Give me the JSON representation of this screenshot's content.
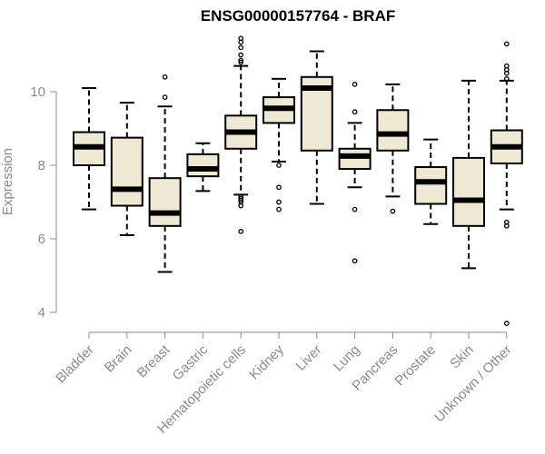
{
  "chart_data": {
    "type": "box",
    "title": "ENSG00000157764 - BRAF",
    "xlabel": "",
    "ylabel": "Expression",
    "ylim": [
      3.6,
      11.5
    ],
    "yticks": [
      4,
      6,
      8,
      10
    ],
    "grid": false,
    "legend": "none",
    "colors": {
      "box_fill": "#efe8d2",
      "box_stroke": "#000000",
      "axis": "#8a8a8a"
    },
    "categories": [
      "Bladder",
      "Brain",
      "Breast",
      "Gastric",
      "Hematopoietic cells",
      "Kidney",
      "Liver",
      "Lung",
      "Pancreas",
      "Prostate",
      "Skin",
      "Unknown / Other"
    ],
    "boxes": [
      {
        "category": "Bladder",
        "whisker_low": 6.8,
        "q1": 8.0,
        "median": 8.5,
        "q3": 8.9,
        "whisker_high": 10.1,
        "outliers": []
      },
      {
        "category": "Brain",
        "whisker_low": 6.1,
        "q1": 6.9,
        "median": 7.35,
        "q3": 8.75,
        "whisker_high": 9.7,
        "outliers": []
      },
      {
        "category": "Breast",
        "whisker_low": 5.1,
        "q1": 6.35,
        "median": 6.7,
        "q3": 7.65,
        "whisker_high": 9.6,
        "outliers": [
          9.85,
          10.4
        ]
      },
      {
        "category": "Gastric",
        "whisker_low": 7.3,
        "q1": 7.7,
        "median": 7.9,
        "q3": 8.3,
        "whisker_high": 8.6,
        "outliers": []
      },
      {
        "category": "Hematopoietic cells",
        "whisker_low": 7.2,
        "q1": 8.45,
        "median": 8.9,
        "q3": 9.35,
        "whisker_high": 10.7,
        "outliers": [
          6.2,
          6.9,
          7.0,
          7.05,
          7.1,
          7.15,
          10.8,
          10.85,
          11.0,
          11.2,
          11.35,
          11.45
        ]
      },
      {
        "category": "Kidney",
        "whisker_low": 8.1,
        "q1": 9.15,
        "median": 9.55,
        "q3": 9.85,
        "whisker_high": 10.35,
        "outliers": [
          6.8,
          7.0,
          7.4,
          8.0
        ]
      },
      {
        "category": "Liver",
        "whisker_low": 6.95,
        "q1": 8.4,
        "median": 10.1,
        "q3": 10.4,
        "whisker_high": 11.1,
        "outliers": []
      },
      {
        "category": "Lung",
        "whisker_low": 7.4,
        "q1": 7.9,
        "median": 8.25,
        "q3": 8.45,
        "whisker_high": 9.15,
        "outliers": [
          5.4,
          6.8,
          9.45,
          10.2
        ]
      },
      {
        "category": "Pancreas",
        "whisker_low": 7.15,
        "q1": 8.4,
        "median": 8.85,
        "q3": 9.5,
        "whisker_high": 10.2,
        "outliers": [
          6.75
        ]
      },
      {
        "category": "Prostate",
        "whisker_low": 6.4,
        "q1": 6.95,
        "median": 7.55,
        "q3": 7.95,
        "whisker_high": 8.7,
        "outliers": []
      },
      {
        "category": "Skin",
        "whisker_low": 5.2,
        "q1": 6.35,
        "median": 7.05,
        "q3": 8.2,
        "whisker_high": 10.3,
        "outliers": []
      },
      {
        "category": "Unknown / Other",
        "whisker_low": 6.8,
        "q1": 8.05,
        "median": 8.5,
        "q3": 8.95,
        "whisker_high": 10.3,
        "outliers": [
          3.7,
          6.35,
          6.45,
          10.35,
          10.5,
          10.6,
          10.7,
          11.3
        ]
      }
    ]
  }
}
